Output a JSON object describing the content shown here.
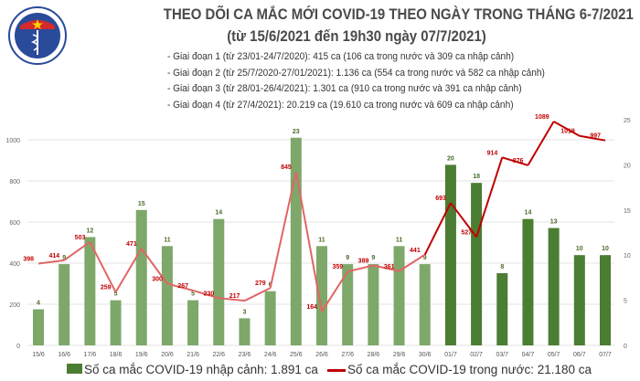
{
  "header": {
    "logo_text": "BỘ Y TẾ",
    "title": "THEO DÕI CA MẮC MỚI COVID-19 THEO NGÀY TRONG THÁNG 6-7/2021",
    "subtitle": "(từ 15/6/2021 đến 19h30 ngày 07/7/2021)",
    "phases": [
      "- Giai đoạn 1 (từ 23/01-24/7/2020): 415 ca (106 ca trong nước và 309 ca nhập cảnh)",
      "- Giai đoạn 2 (từ 25/7/2020-27/01/2021): 1.136 ca (554 ca trong nước và 582 ca nhập cảnh)",
      "- Giai đoạn 3 (từ 28/01-26/4/2021): 1.301 ca (910 ca trong nước và 391 ca nhập cảnh)",
      "- Giai đoạn 4 (từ 27/4/2021): 20.219 ca (19.610 ca trong nước và 609 ca nhập cảnh)"
    ]
  },
  "chart_data": {
    "type": "bar+line",
    "categories": [
      "15/6",
      "16/6",
      "17/6",
      "18/6",
      "19/6",
      "20/6",
      "21/6",
      "22/6",
      "23/6",
      "24/6",
      "25/6",
      "26/6",
      "27/6",
      "28/6",
      "29/6",
      "30/6",
      "01/7",
      "02/7",
      "03/7",
      "04/7",
      "05/7",
      "06/7",
      "07/7"
    ],
    "series": [
      {
        "name": "Số ca mắc COVID-19 nhập cảnh: 1.891 ca",
        "type": "bar",
        "axis": "right",
        "values": [
          4,
          9,
          12,
          5,
          15,
          11,
          5,
          14,
          3,
          6,
          23,
          11,
          9,
          9,
          11,
          9,
          20,
          18,
          8,
          14,
          13,
          10,
          10
        ]
      },
      {
        "name": "Số ca mắc COVID-19 trong nước: 21.180 ca",
        "type": "line",
        "axis": "left",
        "values": [
          398,
          414,
          503,
          259,
          471,
          300,
          267,
          230,
          217,
          279,
          845,
          164,
          359,
          389,
          361,
          441,
          693,
          527,
          914,
          876,
          1089,
          1019,
          997
        ]
      }
    ],
    "left_axis": {
      "ticks": [
        0,
        200,
        400,
        600,
        800,
        1000
      ],
      "range": [
        0,
        1100
      ]
    },
    "right_axis": {
      "ticks": [
        0,
        5,
        10,
        15,
        20,
        25
      ],
      "range": [
        0,
        25
      ]
    },
    "grid": true,
    "legend": "bottom",
    "colors": {
      "bar_light": "#7ea86a",
      "bar_dark": "#4b7d33",
      "line_light": "#e06666",
      "line_dark": "#c00000",
      "bar_label": "#4a6b2a",
      "line_label": "#c00000"
    }
  }
}
